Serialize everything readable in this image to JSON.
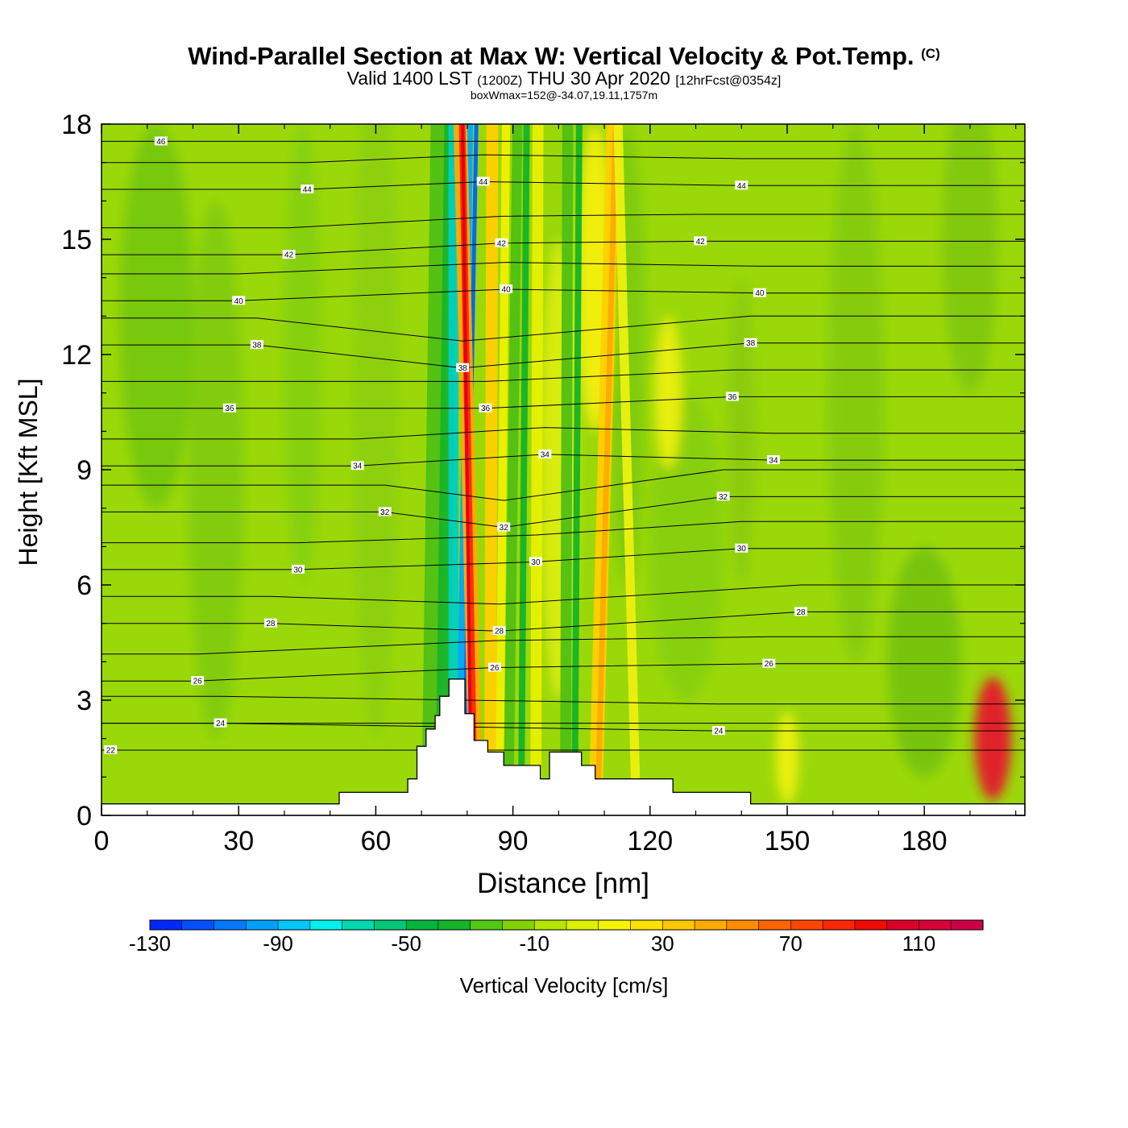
{
  "title": {
    "main": "Wind-Parallel Section at Max W: Vertical Velocity & Pot.Temp.",
    "copyright": "(C)",
    "valid_prefix": "Valid 1400 LST",
    "valid_utc": "(1200Z)",
    "valid_date": "THU 30 Apr 2020",
    "forecast": "[12hrFcst@0354z]",
    "box_max": "boxWmax=152@-34.07,19.11,1757m"
  },
  "chart_data": {
    "type": "heatmap",
    "xlabel": "Distance [nm]",
    "ylabel": "Height [Kft MSL]",
    "xlim": [
      0,
      202
    ],
    "ylim": [
      0,
      18
    ],
    "x_ticks": [
      0,
      30,
      60,
      90,
      120,
      150,
      180
    ],
    "y_ticks": [
      0,
      3,
      6,
      9,
      12,
      15,
      18
    ],
    "colorbar": {
      "label": "Vertical Velocity [cm/s]",
      "min": -130,
      "max": 130,
      "step": 10,
      "tick_labels": [
        "-130",
        "-90",
        "-50",
        "-10",
        "30",
        "70",
        "110"
      ],
      "colors": [
        "#0028ff",
        "#0050ff",
        "#0078ff",
        "#00a0ff",
        "#00c8ff",
        "#00f0f0",
        "#00d8b0",
        "#00c878",
        "#00b43c",
        "#14b428",
        "#50c814",
        "#82d200",
        "#b4e600",
        "#dcf000",
        "#f5f500",
        "#ffe100",
        "#ffc800",
        "#ffaa00",
        "#ff8c00",
        "#ff6400",
        "#ff4600",
        "#ff2800",
        "#f00a00",
        "#dc0028",
        "#d70037",
        "#cc0044"
      ]
    },
    "pot_temp_contours": [
      {
        "value": "46",
        "x": 13,
        "y": 17.55
      },
      {
        "value": "44",
        "x": 45,
        "y": 16.3
      },
      {
        "value": "44",
        "x": 83.5,
        "y": 16.5
      },
      {
        "value": "44",
        "x": 140,
        "y": 16.4
      },
      {
        "value": "42",
        "x": 41,
        "y": 14.6
      },
      {
        "value": "42",
        "x": 87.5,
        "y": 14.9
      },
      {
        "value": "42",
        "x": 131,
        "y": 14.95
      },
      {
        "value": "40",
        "x": 30,
        "y": 13.4
      },
      {
        "value": "40",
        "x": 88.5,
        "y": 13.7
      },
      {
        "value": "40",
        "x": 144,
        "y": 13.6
      },
      {
        "value": "38",
        "x": 34,
        "y": 12.25
      },
      {
        "value": "38",
        "x": 79,
        "y": 11.65
      },
      {
        "value": "38",
        "x": 142,
        "y": 12.3
      },
      {
        "value": "36",
        "x": 28,
        "y": 10.6
      },
      {
        "value": "36",
        "x": 84,
        "y": 10.6
      },
      {
        "value": "36",
        "x": 138,
        "y": 10.9
      },
      {
        "value": "34",
        "x": 56,
        "y": 9.1
      },
      {
        "value": "34",
        "x": 97,
        "y": 9.4
      },
      {
        "value": "34",
        "x": 147,
        "y": 9.25
      },
      {
        "value": "32",
        "x": 62,
        "y": 7.9
      },
      {
        "value": "32",
        "x": 88,
        "y": 7.5
      },
      {
        "value": "32",
        "x": 136,
        "y": 8.3
      },
      {
        "value": "30",
        "x": 43,
        "y": 6.4
      },
      {
        "value": "30",
        "x": 95,
        "y": 6.6
      },
      {
        "value": "30",
        "x": 140,
        "y": 6.95
      },
      {
        "value": "28",
        "x": 37,
        "y": 5.0
      },
      {
        "value": "28",
        "x": 87,
        "y": 4.8
      },
      {
        "value": "28",
        "x": 153,
        "y": 5.3
      },
      {
        "value": "26",
        "x": 21,
        "y": 3.5
      },
      {
        "value": "26",
        "x": 86,
        "y": 3.85
      },
      {
        "value": "26",
        "x": 146,
        "y": 3.95
      },
      {
        "value": "24",
        "x": 26,
        "y": 2.4
      },
      {
        "value": "24",
        "x": 135,
        "y": 2.2
      },
      {
        "value": "22",
        "x": 2,
        "y": 1.7
      }
    ],
    "terrain_kft": [
      [
        0,
        0.3
      ],
      [
        52,
        0.3
      ],
      [
        52,
        0.6
      ],
      [
        67,
        0.6
      ],
      [
        67,
        0.95
      ],
      [
        69,
        0.95
      ],
      [
        69,
        1.8
      ],
      [
        71,
        1.8
      ],
      [
        71,
        2.25
      ],
      [
        73,
        2.25
      ],
      [
        73,
        2.6
      ],
      [
        74,
        2.6
      ],
      [
        74,
        3.1
      ],
      [
        76,
        3.1
      ],
      [
        76,
        3.55
      ],
      [
        79.5,
        3.55
      ],
      [
        79.5,
        2.65
      ],
      [
        81.5,
        2.65
      ],
      [
        81.5,
        1.95
      ],
      [
        84.5,
        1.95
      ],
      [
        84.5,
        1.65
      ],
      [
        88,
        1.65
      ],
      [
        88,
        1.3
      ],
      [
        96,
        1.3
      ],
      [
        96,
        0.95
      ],
      [
        98,
        0.95
      ],
      [
        98,
        1.65
      ],
      [
        105,
        1.65
      ],
      [
        105,
        1.3
      ],
      [
        108,
        1.3
      ],
      [
        108,
        0.95
      ],
      [
        125,
        0.95
      ],
      [
        125,
        0.6
      ],
      [
        142,
        0.6
      ],
      [
        142,
        0.3
      ],
      [
        202,
        0.3
      ]
    ]
  }
}
